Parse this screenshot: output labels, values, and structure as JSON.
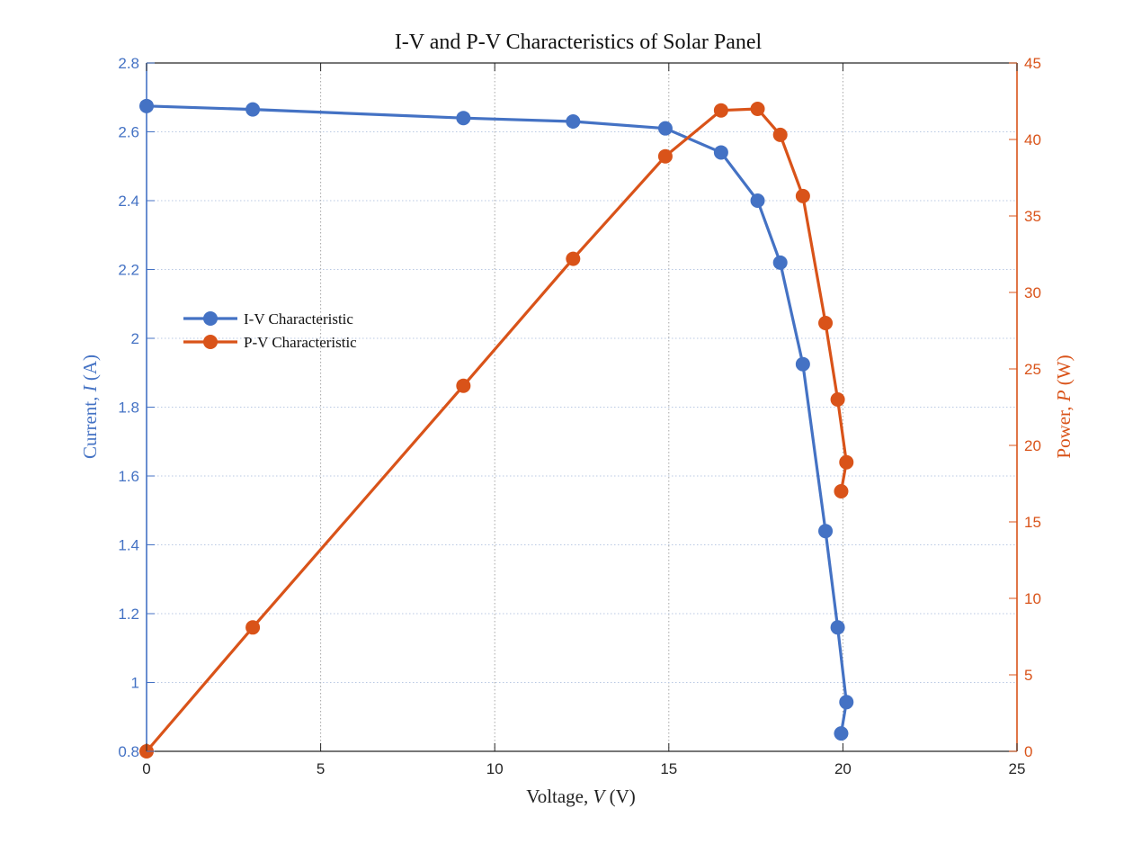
{
  "chart_data": {
    "type": "line",
    "title": "I-V and P-V Characteristics of Solar Panel",
    "xlabel": "Voltage, V (V)",
    "xlabel_parts": {
      "prefix": "Voltage, ",
      "symbol": "V",
      "suffix": " (V)"
    },
    "ylabel_left": "Current, I (A)",
    "ylabel_left_parts": {
      "prefix": "Current, ",
      "symbol": "I",
      "suffix": " (A)"
    },
    "ylabel_right": "Power, P (W)",
    "ylabel_right_parts": {
      "prefix": "Power, ",
      "symbol": "P",
      "suffix": " (W)"
    },
    "xlim": [
      0,
      25
    ],
    "ylim_left": [
      0.8,
      2.8
    ],
    "ylim_right": [
      0,
      45
    ],
    "xticks": [
      0,
      5,
      10,
      15,
      20,
      25
    ],
    "yticks_left": [
      0.8,
      1,
      1.2,
      1.4,
      1.6,
      1.8,
      2,
      2.2,
      2.4,
      2.6,
      2.8
    ],
    "yticks_right": [
      0,
      5,
      10,
      15,
      20,
      25,
      30,
      35,
      40,
      45
    ],
    "grid": true,
    "legend_position": "center-left",
    "colors": {
      "iv": "#4472C4",
      "pv": "#D95319"
    },
    "series": [
      {
        "name": "I-V Characteristic",
        "axis": "left",
        "x": [
          0,
          3.05,
          9.1,
          12.25,
          14.9,
          16.5,
          17.55,
          18.2,
          18.85,
          19.5,
          19.85,
          20.1,
          19.95
        ],
        "y": [
          2.675,
          2.665,
          2.64,
          2.63,
          2.61,
          2.54,
          2.4,
          2.22,
          1.925,
          1.44,
          1.16,
          0.943,
          0.852
        ]
      },
      {
        "name": "P-V Characteristic",
        "axis": "right",
        "x": [
          0,
          3.05,
          9.1,
          12.25,
          14.9,
          16.5,
          17.55,
          18.2,
          18.85,
          19.5,
          19.85,
          20.1,
          19.95
        ],
        "y": [
          0,
          8.1,
          23.9,
          32.2,
          38.9,
          41.9,
          42.0,
          40.3,
          36.3,
          28.0,
          23.0,
          18.9,
          17.0
        ]
      }
    ]
  }
}
